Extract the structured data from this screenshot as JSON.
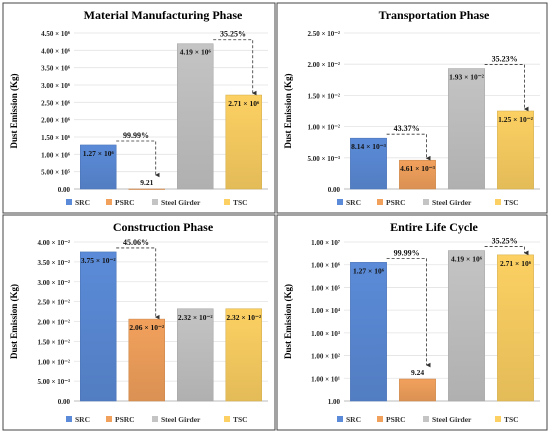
{
  "colors": {
    "SRC": "#5b8bd8",
    "PSRC": "#f2a15c",
    "Steel Girder": "#c4c4c4",
    "TSC": "#fcd062"
  },
  "chart_data": [
    {
      "type": "bar",
      "title": "Material Manufacturing Phase",
      "ylabel": "Dust Emission (Kg)",
      "categories": [
        "SRC",
        "PSRC",
        "Steel Girder",
        "TSC"
      ],
      "values": [
        1270000,
        9.21,
        4190000,
        2710000
      ],
      "value_labels": [
        "1.27 × 10⁶",
        "9.21",
        "4.19 × 10⁶",
        "2.71 × 10⁶"
      ],
      "ylim": [
        0,
        4500000
      ],
      "yticks": [
        0,
        500000,
        1000000,
        1500000,
        2000000,
        2500000,
        3000000,
        3500000,
        4000000,
        4500000
      ],
      "ytick_labels": [
        "0.00",
        "5.00 × 10⁵",
        "1.00 × 10⁶",
        "1.50 × 10⁶",
        "2.00 × 10⁶",
        "2.50 × 10⁶",
        "3.00 × 10⁶",
        "3.50 × 10⁶",
        "4.00 × 10⁶",
        "4.50 × 10⁶"
      ],
      "log": false,
      "annotations": [
        {
          "from": 0,
          "to": 1,
          "text": "99.99%"
        },
        {
          "from": 2,
          "to": 3,
          "text": "35.25%"
        }
      ],
      "legend": [
        "SRC",
        "PSRC",
        "Steel Girder",
        "TSC"
      ]
    },
    {
      "type": "bar",
      "title": "Transportation Phase",
      "ylabel": "Dust Emission (Kg)",
      "categories": [
        "SRC",
        "PSRC",
        "Steel Girder",
        "TSC"
      ],
      "values": [
        0.00814,
        0.00461,
        0.0193,
        0.0125
      ],
      "value_labels": [
        "8.14 × 10⁻³",
        "4.61 × 10⁻³",
        "1.93 × 10⁻²",
        "1.25 × 10⁻²"
      ],
      "ylim": [
        0,
        0.025
      ],
      "yticks": [
        0,
        0.005,
        0.01,
        0.015,
        0.02,
        0.025
      ],
      "ytick_labels": [
        "0.00",
        "5.00 × 10⁻³",
        "1.00 × 10⁻²",
        "1.50 × 10⁻²",
        "2.00 × 10⁻²",
        "2.50 × 10⁻²"
      ],
      "log": false,
      "annotations": [
        {
          "from": 0,
          "to": 1,
          "text": "43.37%"
        },
        {
          "from": 2,
          "to": 3,
          "text": "35.23%"
        }
      ],
      "legend": [
        "SRC",
        "PSRC",
        "Steel Girder",
        "TSC"
      ]
    },
    {
      "type": "bar",
      "title": "Construction Phase",
      "ylabel": "Dust Emission (Kg)",
      "categories": [
        "SRC",
        "PSRC",
        "Steel Girder",
        "TSC"
      ],
      "values": [
        0.0375,
        0.0206,
        0.0232,
        0.0232
      ],
      "value_labels": [
        "3.75 × 10⁻²",
        "2.06 × 10⁻²",
        "2.32 × 10⁻²",
        "2.32 × 10⁻²"
      ],
      "ylim": [
        0,
        0.04
      ],
      "yticks": [
        0,
        0.005,
        0.01,
        0.015,
        0.02,
        0.025,
        0.03,
        0.035,
        0.04
      ],
      "ytick_labels": [
        "0.00",
        "5.00 × 10⁻³",
        "1.00 × 10⁻²",
        "1.50 × 10⁻²",
        "2.00 × 10⁻²",
        "2.50 × 10⁻²",
        "3.00 × 10⁻²",
        "3.50 × 10⁻²",
        "4.00 × 10⁻²"
      ],
      "log": false,
      "annotations": [
        {
          "from": 0,
          "to": 1,
          "text": "45.06%"
        }
      ],
      "legend": [
        "SRC",
        "PSRC",
        "Steel Girder",
        "TSC"
      ]
    },
    {
      "type": "bar",
      "title": "Entire Life Cycle",
      "ylabel": "Dust Emission (Kg)",
      "categories": [
        "SRC",
        "PSRC",
        "Steel Girder",
        "TSC"
      ],
      "values": [
        1270000,
        9.24,
        4190000,
        2710000
      ],
      "value_labels": [
        "1.27 × 10⁶",
        "9.24",
        "4.19 × 10⁶",
        "2.71 × 10⁶"
      ],
      "ylim": [
        1,
        10000000
      ],
      "yticks": [
        1,
        10,
        100,
        1000,
        10000,
        100000,
        1000000,
        10000000
      ],
      "ytick_labels": [
        "1.00",
        "1.00 × 10¹",
        "1.00 × 10²",
        "1.00 × 10³",
        "1.00 × 10⁴",
        "1.00 × 10⁵",
        "1.00 × 10⁶",
        "1.00 × 10⁷"
      ],
      "log": true,
      "annotations": [
        {
          "from": 0,
          "to": 1,
          "text": "99.99%"
        },
        {
          "from": 2,
          "to": 3,
          "text": "35.25%"
        }
      ],
      "legend": [
        "SRC",
        "PSRC",
        "Steel Girder",
        "TSC"
      ]
    }
  ]
}
